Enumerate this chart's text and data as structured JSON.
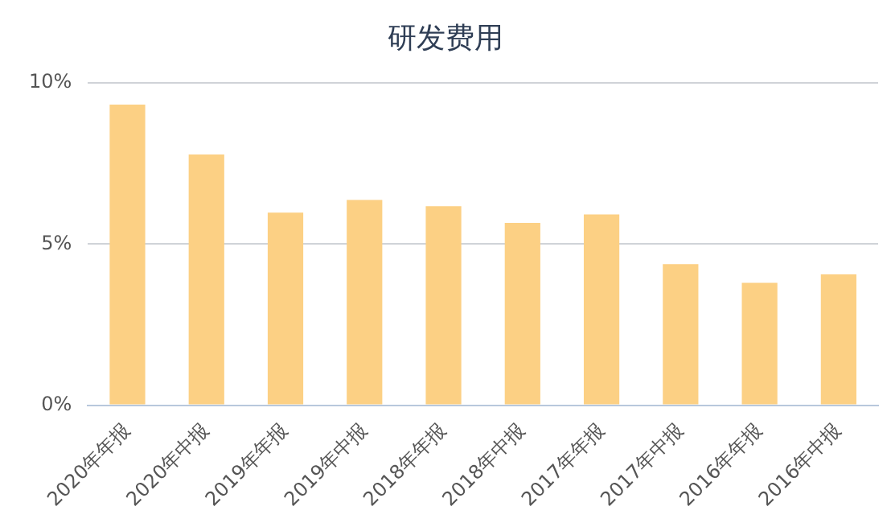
{
  "chart_data": {
    "type": "bar",
    "title": "研发费用",
    "categories": [
      "2020年年报",
      "2020年中报",
      "2019年年报",
      "2019年中报",
      "2018年年报",
      "2018年中报",
      "2017年年报",
      "2017年中报",
      "2016年年报",
      "2016年中报"
    ],
    "values": [
      9.33,
      7.78,
      5.98,
      6.37,
      6.18,
      5.66,
      5.92,
      4.38,
      3.8,
      4.06
    ],
    "color": "#fcd084",
    "ylim": [
      0,
      10
    ],
    "yticks": [
      {
        "value": 0,
        "label": "0%"
      },
      {
        "value": 5,
        "label": "5%"
      },
      {
        "value": 10,
        "label": "10%"
      }
    ],
    "grid": "y"
  }
}
